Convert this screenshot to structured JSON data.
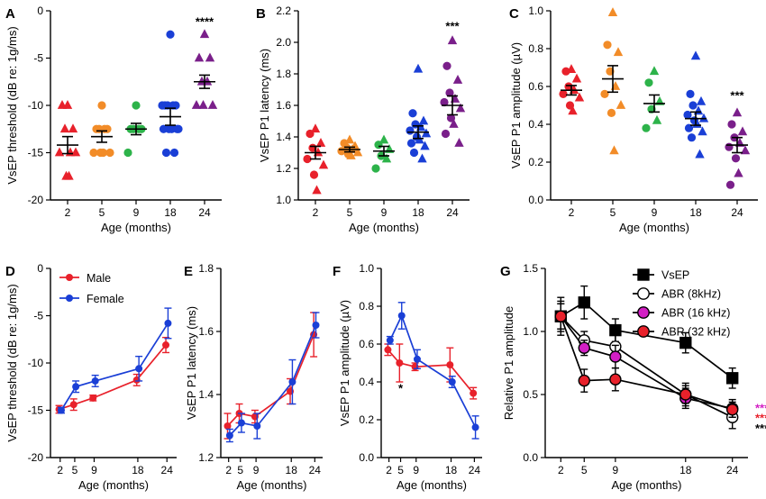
{
  "chart_data": [
    {
      "id": "A",
      "letter": "A",
      "type": "scatter",
      "xlabel": "Age (months)",
      "ylabel": "VsEP threshold (dB re: 1g/ms)",
      "categories": [
        "2",
        "5",
        "9",
        "18",
        "24"
      ],
      "ylim": [
        -20,
        0
      ],
      "yticks": [
        -20,
        -15,
        -10,
        -5,
        0
      ],
      "ytick_labels": [
        "-20",
        "-15",
        "-10",
        "-5",
        "0"
      ],
      "groups": [
        {
          "category": "2",
          "color": "#e8212b",
          "marker": "triangle",
          "points": [
            -10,
            -10,
            -12.5,
            -12.5,
            -15,
            -15,
            -15,
            -17.5,
            -17.5
          ],
          "mean": -14.2,
          "sem": 0.9
        },
        {
          "category": "5",
          "color": "#f28c28",
          "marker": "circle",
          "points": [
            -10,
            -12.5,
            -12.5,
            -12.5,
            -12.5,
            -15,
            -15,
            -15,
            -15
          ],
          "mean": -13.3,
          "sem": 0.6
        },
        {
          "category": "9",
          "color": "#2db34a",
          "marker": "circle",
          "points": [
            -10,
            -12.5,
            -12.5,
            -12.5,
            -12.5,
            -15
          ],
          "mean": -12.5,
          "sem": 0.6
        },
        {
          "category": "18",
          "color": "#1a3fd6",
          "marker": "circle",
          "points": [
            -2.5,
            -10,
            -10,
            -10,
            -10,
            -10,
            -12.5,
            -12.5,
            -12.5,
            -12.5,
            -12.5,
            -15,
            -15
          ],
          "mean": -11.2,
          "sem": 0.9
        },
        {
          "category": "24",
          "color": "#7a1f8a",
          "marker": "triangle",
          "points": [
            -2.5,
            -5,
            -5,
            -7.5,
            -7.5,
            -10,
            -10,
            -10
          ],
          "mean": -7.5,
          "sem": 0.7
        }
      ],
      "annotations": [
        {
          "category": "24",
          "text": "****",
          "y": -1.2,
          "color": "#000000"
        }
      ]
    },
    {
      "id": "B",
      "letter": "B",
      "type": "scatter",
      "xlabel": "Age (months)",
      "ylabel": "VsEP P1 latency (ms)",
      "categories": [
        "2",
        "5",
        "9",
        "18",
        "24"
      ],
      "ylim": [
        1.0,
        2.2
      ],
      "yticks": [
        1.0,
        1.2,
        1.4,
        1.6,
        1.8,
        2.0,
        2.2
      ],
      "ytick_labels": [
        "1.0",
        "1.2",
        "1.4",
        "1.6",
        "1.8",
        "2.0",
        "2.2"
      ],
      "groups": [
        {
          "category": "2",
          "color": "#e8212b",
          "marker": "mixed",
          "points": [
            1.45,
            1.42,
            1.36,
            1.33,
            1.3,
            1.26,
            1.22,
            1.16,
            1.06
          ],
          "mean": 1.3,
          "sem": 0.04
        },
        {
          "category": "5",
          "color": "#f28c28",
          "marker": "mixed",
          "points": [
            1.38,
            1.36,
            1.34,
            1.33,
            1.32,
            1.31,
            1.3,
            1.29,
            1.28
          ],
          "mean": 1.32,
          "sem": 0.015
        },
        {
          "category": "9",
          "color": "#2db34a",
          "marker": "mixed",
          "points": [
            1.38,
            1.35,
            1.32,
            1.28,
            1.26,
            1.2
          ],
          "mean": 1.31,
          "sem": 0.03
        },
        {
          "category": "18",
          "color": "#1a3fd6",
          "marker": "mixed",
          "points": [
            1.83,
            1.55,
            1.5,
            1.48,
            1.46,
            1.44,
            1.42,
            1.4,
            1.38,
            1.36,
            1.34,
            1.3,
            1.26
          ],
          "mean": 1.43,
          "sem": 0.04
        },
        {
          "category": "24",
          "color": "#7a1f8a",
          "marker": "mixed",
          "points": [
            2.01,
            1.85,
            1.76,
            1.68,
            1.64,
            1.62,
            1.58,
            1.52,
            1.48,
            1.42,
            1.36
          ],
          "mean": 1.6,
          "sem": 0.06
        }
      ],
      "annotations": [
        {
          "category": "24",
          "text": "***",
          "y": 2.1,
          "color": "#000000"
        }
      ]
    },
    {
      "id": "C",
      "letter": "C",
      "type": "scatter",
      "xlabel": "Age (months)",
      "ylabel": "VsEP P1 amplitude (µV)",
      "categories": [
        "2",
        "5",
        "9",
        "18",
        "24"
      ],
      "ylim": [
        0,
        1.0
      ],
      "yticks": [
        0,
        0.2,
        0.4,
        0.6,
        0.8,
        1.0
      ],
      "ytick_labels": [
        "0.0",
        "0.2",
        "0.4",
        "0.6",
        "0.8",
        "1.0"
      ],
      "groups": [
        {
          "category": "2",
          "color": "#e8212b",
          "marker": "mixed",
          "points": [
            0.69,
            0.68,
            0.64,
            0.6,
            0.58,
            0.56,
            0.54,
            0.5,
            0.47
          ],
          "mean": 0.58,
          "sem": 0.025
        },
        {
          "category": "5",
          "color": "#f28c28",
          "marker": "mixed",
          "points": [
            0.99,
            0.82,
            0.78,
            0.68,
            0.6,
            0.56,
            0.5,
            0.46,
            0.26
          ],
          "mean": 0.64,
          "sem": 0.07
        },
        {
          "category": "9",
          "color": "#2db34a",
          "marker": "mixed",
          "points": [
            0.68,
            0.62,
            0.52,
            0.48,
            0.42,
            0.38
          ],
          "mean": 0.51,
          "sem": 0.045
        },
        {
          "category": "18",
          "color": "#1a3fd6",
          "marker": "mixed",
          "points": [
            0.76,
            0.56,
            0.52,
            0.5,
            0.47,
            0.45,
            0.43,
            0.42,
            0.4,
            0.38,
            0.36,
            0.33,
            0.24
          ],
          "mean": 0.43,
          "sem": 0.035
        },
        {
          "category": "24",
          "color": "#7a1f8a",
          "marker": "mixed",
          "points": [
            0.46,
            0.4,
            0.36,
            0.33,
            0.3,
            0.28,
            0.26,
            0.22,
            0.14,
            0.08
          ],
          "mean": 0.29,
          "sem": 0.04
        }
      ],
      "annotations": [
        {
          "category": "24",
          "text": "***",
          "y": 0.55,
          "color": "#000000"
        }
      ]
    },
    {
      "id": "D",
      "letter": "D",
      "type": "line",
      "xlabel": "Age (months)",
      "ylabel": "VsEP threshold (dB re: 1g/ms)",
      "x": [
        2,
        5,
        9,
        18,
        24
      ],
      "xlim": [
        0,
        26
      ],
      "xtick_labels": [
        "2",
        "5",
        "9",
        "18",
        "24"
      ],
      "ylim": [
        -20,
        0
      ],
      "yticks": [
        -20,
        -15,
        -10,
        -5,
        0
      ],
      "ytick_labels": [
        "-20",
        "-15",
        "-10",
        "-5",
        "0"
      ],
      "series": [
        {
          "name": "Male",
          "color": "#e8212b",
          "marker": "filled-circle",
          "values": [
            -14.9,
            -14.4,
            -13.7,
            -11.8,
            -8.1
          ],
          "err": [
            0.4,
            0.6,
            0.3,
            0.6,
            0.8
          ]
        },
        {
          "name": "Female",
          "color": "#1a3fd6",
          "marker": "filled-circle",
          "values": [
            -15.0,
            -12.5,
            -11.9,
            -10.6,
            -5.8
          ],
          "err": [
            0.3,
            0.6,
            0.6,
            1.3,
            1.6
          ]
        }
      ],
      "legend": {
        "placement": "top-left",
        "entries": [
          "Male",
          "Female"
        ]
      }
    },
    {
      "id": "E",
      "letter": "E",
      "type": "line",
      "xlabel": "Age (months)",
      "ylabel": "VsEP P1 latency (ms)",
      "x": [
        2,
        5,
        9,
        18,
        24
      ],
      "xlim": [
        0,
        26
      ],
      "xtick_labels": [
        "2",
        "5",
        "9",
        "18",
        "24"
      ],
      "ylim": [
        1.2,
        1.8
      ],
      "yticks": [
        1.2,
        1.4,
        1.6,
        1.8
      ],
      "ytick_labels": [
        "1.2",
        "1.4",
        "1.6",
        "1.8"
      ],
      "series": [
        {
          "name": "Male",
          "color": "#e8212b",
          "marker": "filled-circle",
          "values": [
            1.3,
            1.34,
            1.33,
            1.41,
            1.59
          ],
          "err": [
            0.04,
            0.03,
            0.02,
            0.04,
            0.07
          ]
        },
        {
          "name": "Female",
          "color": "#1a3fd6",
          "marker": "filled-circle",
          "values": [
            1.27,
            1.31,
            1.3,
            1.44,
            1.62
          ],
          "err": [
            0.02,
            0.03,
            0.04,
            0.07,
            0.04
          ]
        }
      ]
    },
    {
      "id": "F",
      "letter": "F",
      "type": "line",
      "xlabel": "Age (months)",
      "ylabel": "VsEP P1 amplitude (µV)",
      "x": [
        2,
        5,
        9,
        18,
        24
      ],
      "xlim": [
        0,
        26
      ],
      "xtick_labels": [
        "2",
        "5",
        "9",
        "18",
        "24"
      ],
      "ylim": [
        0,
        1.0
      ],
      "yticks": [
        0,
        0.2,
        0.4,
        0.6,
        0.8,
        1.0
      ],
      "ytick_labels": [
        "0.0",
        "0.2",
        "0.4",
        "0.6",
        "0.8",
        "1.0"
      ],
      "series": [
        {
          "name": "Male",
          "color": "#e8212b",
          "marker": "filled-circle",
          "values": [
            0.57,
            0.5,
            0.48,
            0.49,
            0.34
          ],
          "err": [
            0.03,
            0.1,
            0.02,
            0.09,
            0.03
          ]
        },
        {
          "name": "Female",
          "color": "#1a3fd6",
          "marker": "filled-circle",
          "values": [
            0.62,
            0.75,
            0.52,
            0.4,
            0.16
          ],
          "err": [
            0.02,
            0.07,
            0.05,
            0.03,
            0.06
          ]
        }
      ],
      "annotations": [
        {
          "x": 5,
          "text": "*",
          "y": 0.37,
          "color": "#000000"
        }
      ]
    },
    {
      "id": "G",
      "letter": "G",
      "type": "line",
      "xlabel": "Age (months)",
      "ylabel": "Relative P1 amplitude",
      "x": [
        2,
        5,
        9,
        18,
        24
      ],
      "xlim": [
        0,
        26
      ],
      "xtick_labels": [
        "2",
        "5",
        "9",
        "18",
        "24"
      ],
      "ylim": [
        0,
        1.5
      ],
      "yticks": [
        0,
        0.5,
        1.0,
        1.5
      ],
      "ytick_labels": [
        "0.0",
        "0.5",
        "1.0",
        "1.5"
      ],
      "series": [
        {
          "name": "VsEP",
          "color": "#000000",
          "fill": "#000000",
          "marker": "square",
          "values": [
            1.12,
            1.23,
            1.01,
            0.91,
            0.63
          ],
          "err": [
            0.15,
            0.13,
            0.09,
            0.08,
            0.08
          ]
        },
        {
          "name": "ABR (8kHz)",
          "color": "#000000",
          "fill": "#ffffff",
          "marker": "circle",
          "values": [
            1.12,
            0.93,
            0.88,
            0.5,
            0.32
          ],
          "err": [
            0.1,
            0.07,
            0.1,
            0.09,
            0.09
          ]
        },
        {
          "name": "ABR (16 kHz)",
          "color": "#000000",
          "fill": "#d21fc4",
          "marker": "circle",
          "values": [
            1.12,
            0.87,
            0.8,
            0.47,
            0.39
          ],
          "err": [
            0.1,
            0.06,
            0.09,
            0.08,
            0.07
          ]
        },
        {
          "name": "ABR (32 kHz)",
          "color": "#000000",
          "fill": "#e8212b",
          "marker": "circle",
          "values": [
            1.12,
            0.61,
            0.62,
            0.5,
            0.38
          ],
          "err": [
            0.12,
            0.09,
            0.09,
            0.07,
            0.06
          ]
        }
      ],
      "legend": {
        "placement": "top-right",
        "entries": [
          "VsEP",
          "ABR (8kHz)",
          "ABR (16 kHz)",
          "ABR (32 kHz)"
        ]
      },
      "annotations": [
        {
          "text": "****",
          "y": 0.39,
          "color": "#d21fc4"
        },
        {
          "text": "****",
          "y": 0.31,
          "color": "#e8212b"
        },
        {
          "text": "***",
          "y": 0.23,
          "color": "#000000"
        }
      ]
    }
  ]
}
